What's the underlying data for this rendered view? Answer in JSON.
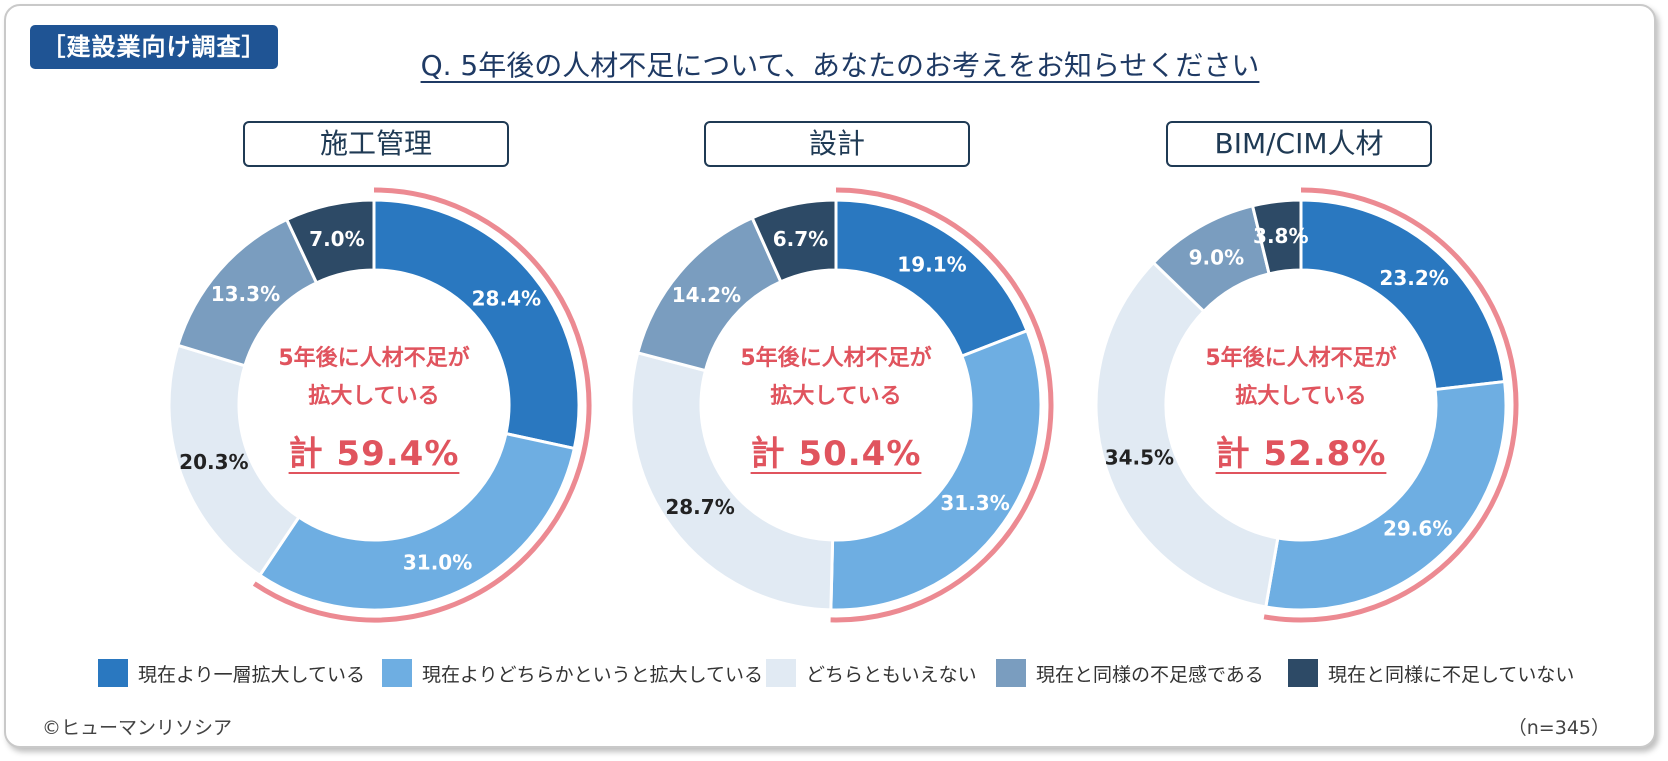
{
  "header": {
    "tag": "［建設業向け調査］",
    "question": "Q. 5年後の人材不足について、あなたのお考えをお知らせください"
  },
  "footer": {
    "copyright": "©ヒューマンリソシア",
    "sample": "（n=345）"
  },
  "legend": [
    {
      "label": "現在より一層拡大している",
      "color": "#2a78c0"
    },
    {
      "label": "現在よりどちらかというと拡大している",
      "color": "#6eaee2"
    },
    {
      "label": "どちらともいえない",
      "color": "#e1eaf3"
    },
    {
      "label": "現在と同様の不足感である",
      "color": "#7a9dbf"
    },
    {
      "label": "現在と同様に不足していない",
      "color": "#2d4a66"
    }
  ],
  "colors": {
    "highlight_arc": "#ec8a92",
    "center_text": "#e0545e"
  },
  "center_caption": {
    "line1": "5年後に人材不足が",
    "line2": "拡大している"
  },
  "chart_data": [
    {
      "type": "pie",
      "title": "施工管理",
      "categories": [
        "現在より一層拡大している",
        "現在よりどちらかというと拡大している",
        "どちらともいえない",
        "現在と同様の不足感である",
        "現在と同様に不足していない"
      ],
      "values": [
        28.4,
        31.0,
        20.3,
        13.3,
        7.0
      ],
      "labels": [
        "28.4%",
        "31.0%",
        "20.3%",
        "13.3%",
        "7.0%"
      ],
      "total_label": "計 59.4%"
    },
    {
      "type": "pie",
      "title": "設計",
      "categories": [
        "現在より一層拡大している",
        "現在よりどちらかというと拡大している",
        "どちらともいえない",
        "現在と同様の不足感である",
        "現在と同様に不足していない"
      ],
      "values": [
        19.1,
        31.3,
        28.7,
        14.2,
        6.7
      ],
      "labels": [
        "19.1%",
        "31.3%",
        "28.7%",
        "14.2%",
        "6.7%"
      ],
      "total_label": "計 50.4%"
    },
    {
      "type": "pie",
      "title": "BIM/CIM人材",
      "categories": [
        "現在より一層拡大している",
        "現在よりどちらかというと拡大している",
        "どちらともいえない",
        "現在と同様の不足感である",
        "現在と同様に不足していない"
      ],
      "values": [
        23.2,
        29.6,
        34.5,
        9.0,
        3.8
      ],
      "labels": [
        "23.2%",
        "29.6%",
        "34.5%",
        "9.0%",
        "3.8%"
      ],
      "total_label": "計 52.8%"
    }
  ]
}
